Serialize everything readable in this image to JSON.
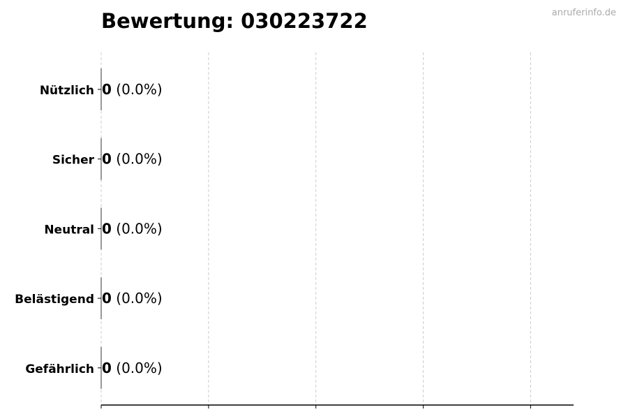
{
  "watermark": "anruferinfo.de",
  "chart_data": {
    "type": "bar",
    "orientation": "horizontal",
    "title": "Bewertung: 030223722",
    "categories": [
      "Nützlich",
      "Sicher",
      "Neutral",
      "Belästigend",
      "Gefährlich"
    ],
    "values": [
      0,
      0,
      0,
      0,
      0
    ],
    "percent_labels": [
      "(0.0%)",
      "(0.0%)",
      "(0.0%)",
      "(0.0%)",
      "(0.0%)"
    ],
    "xlim": [
      0,
      4.4
    ],
    "xticks": [
      0,
      1,
      2,
      3,
      4
    ],
    "xtick_labels_shown": false,
    "grid": "vertical dashed",
    "colors": {
      "grid": "#cccccc",
      "bar_edge": "#333333"
    }
  }
}
